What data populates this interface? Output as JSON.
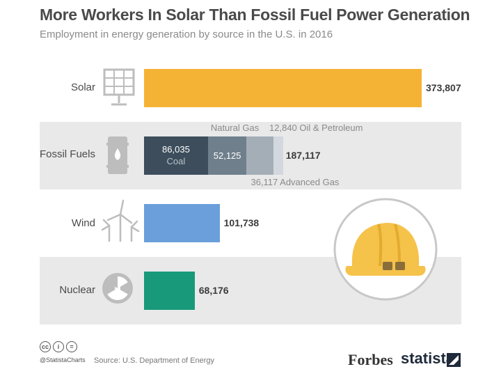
{
  "header": {
    "title": "More Workers In Solar Than Fossil Fuel Power Generation",
    "subtitle": "Employment in energy generation by source in the U.S. in 2016"
  },
  "chart_data": {
    "type": "bar",
    "orientation": "horizontal",
    "title": "More Workers In Solar Than Fossil Fuel Power Generation",
    "subtitle": "Employment in energy generation by source in the U.S. in 2016",
    "categories": [
      "Solar",
      "Fossil Fuels",
      "Wind",
      "Nuclear"
    ],
    "bars": [
      {
        "category": "Solar",
        "total": 373807,
        "total_label": "373,807",
        "color": "#f5b335",
        "icon": "solar-panel-icon"
      },
      {
        "category": "Fossil Fuels",
        "total": 187117,
        "total_label": "187,117",
        "icon": "oil-barrel-icon",
        "segments": [
          {
            "name": "Coal",
            "value": 86035,
            "label": "86,035",
            "color": "#3d4d5c"
          },
          {
            "name": "Natural Gas",
            "value": 52125,
            "label": "52,125",
            "color": "#6f7f8c"
          },
          {
            "name": "Advanced Gas",
            "value": 36117,
            "label": "36,117",
            "color": "#a3aeb7"
          },
          {
            "name": "Oil & Petroleum",
            "value": 12840,
            "label": "12,840",
            "color": "#d2d8dd"
          }
        ]
      },
      {
        "category": "Wind",
        "total": 101738,
        "total_label": "101,738",
        "color": "#6a9fdb",
        "icon": "wind-turbine-icon"
      },
      {
        "category": "Nuclear",
        "total": 68176,
        "total_label": "68,176",
        "color": "#18997a",
        "icon": "radiation-icon"
      }
    ],
    "annotations": {
      "natural_gas": "Natural Gas",
      "oil_petroleum": "12,840 Oil & Petroleum",
      "advanced_gas": "36,117 Advanced Gas"
    },
    "legend": "none",
    "grid": false
  },
  "decor": {
    "hard_hat_icon": "hard-hat-icon"
  },
  "footer": {
    "cc_icons": [
      "cc",
      "i",
      "="
    ],
    "handle": "@StatistaCharts",
    "source": "Source: U.S. Department of Energy",
    "brands": {
      "forbes": "Forbes",
      "statista": "statista"
    }
  }
}
